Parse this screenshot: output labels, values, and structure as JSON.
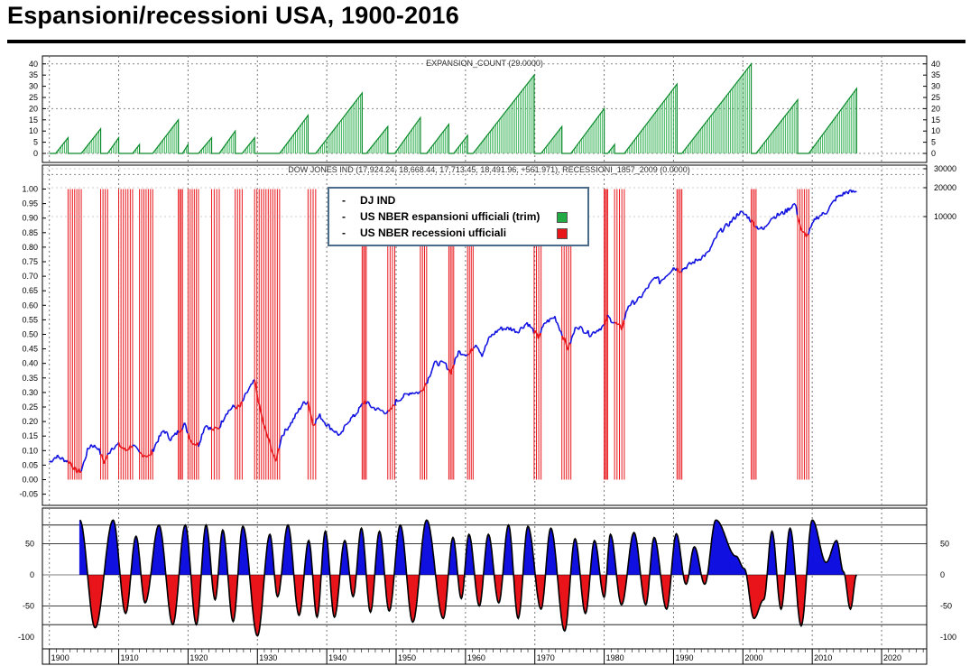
{
  "title": "Espansioni/recessioni USA, 1900-2016",
  "legend": {
    "items": [
      {
        "label": "DJ IND",
        "color": ""
      },
      {
        "label": "US NBER espansioni ufficiali (trim)",
        "color": "#22aa44"
      },
      {
        "label": "US NBER recessioni ufficiali",
        "color": "#e8151b"
      }
    ]
  },
  "chart_data": [
    {
      "type": "bar",
      "title": "EXPANSION_COUNT (29.0000)",
      "ylim": [
        -2,
        42
      ],
      "yticks": [
        "0",
        "5",
        "10",
        "15",
        "20",
        "25",
        "30",
        "35",
        "40"
      ],
      "series_color": "#22aa44",
      "expansions": [
        {
          "start": 1900.9,
          "end": 1902.7,
          "peak": 7
        },
        {
          "start": 1904.6,
          "end": 1907.4,
          "peak": 11
        },
        {
          "start": 1908.4,
          "end": 1910.0,
          "peak": 7
        },
        {
          "start": 1912.0,
          "end": 1913.0,
          "peak": 4
        },
        {
          "start": 1914.9,
          "end": 1918.6,
          "peak": 15
        },
        {
          "start": 1919.2,
          "end": 1920.0,
          "peak": 4
        },
        {
          "start": 1921.5,
          "end": 1923.4,
          "peak": 7
        },
        {
          "start": 1924.5,
          "end": 1926.8,
          "peak": 10
        },
        {
          "start": 1927.8,
          "end": 1929.6,
          "peak": 7
        },
        {
          "start": 1933.2,
          "end": 1937.3,
          "peak": 17
        },
        {
          "start": 1938.4,
          "end": 1945.1,
          "peak": 27
        },
        {
          "start": 1945.7,
          "end": 1948.8,
          "peak": 12
        },
        {
          "start": 1949.8,
          "end": 1953.5,
          "peak": 16
        },
        {
          "start": 1954.4,
          "end": 1957.6,
          "peak": 13
        },
        {
          "start": 1958.3,
          "end": 1960.3,
          "peak": 8
        },
        {
          "start": 1961.1,
          "end": 1969.9,
          "peak": 35
        },
        {
          "start": 1970.9,
          "end": 1973.9,
          "peak": 12
        },
        {
          "start": 1975.2,
          "end": 1980.0,
          "peak": 20
        },
        {
          "start": 1980.5,
          "end": 1981.5,
          "peak": 4
        },
        {
          "start": 1982.9,
          "end": 1990.5,
          "peak": 31
        },
        {
          "start": 1991.2,
          "end": 2001.2,
          "peak": 40
        },
        {
          "start": 2001.9,
          "end": 2007.9,
          "peak": 24
        },
        {
          "start": 2009.5,
          "end": 2016.4,
          "peak": 29
        }
      ]
    },
    {
      "type": "line",
      "title": "DOW JONES IND (17,924.24, 18,668.44, 17,713.45, 18,491.96, +561.971), RECESSIONI_1857_2009 (0.0000)",
      "ylim": [
        -0.09,
        1.04
      ],
      "yticks": [
        "-0.05",
        "0.00",
        "0.05",
        "0.10",
        "0.15",
        "0.20",
        "0.25",
        "0.30",
        "0.35",
        "0.40",
        "0.45",
        "0.50",
        "0.55",
        "0.60",
        "0.65",
        "0.70",
        "0.75",
        "0.80",
        "0.85",
        "0.90",
        "0.95",
        "1.00"
      ],
      "yticks_right": [
        "30000",
        "20000",
        "10000"
      ],
      "expansion_color": "#1010e0",
      "recession_color": "#e8151b",
      "recession_periods": [
        [
          1902.7,
          1904.6
        ],
        [
          1907.4,
          1908.4
        ],
        [
          1910.0,
          1912.0
        ],
        [
          1913.0,
          1914.9
        ],
        [
          1918.6,
          1919.2
        ],
        [
          1920.0,
          1921.5
        ],
        [
          1923.4,
          1924.5
        ],
        [
          1926.8,
          1927.8
        ],
        [
          1929.6,
          1933.2
        ],
        [
          1937.3,
          1938.4
        ],
        [
          1945.1,
          1945.7
        ],
        [
          1948.8,
          1949.8
        ],
        [
          1953.5,
          1954.4
        ],
        [
          1957.6,
          1958.3
        ],
        [
          1960.3,
          1961.1
        ],
        [
          1969.9,
          1970.9
        ],
        [
          1973.9,
          1975.2
        ],
        [
          1980.0,
          1980.5
        ],
        [
          1981.5,
          1982.9
        ],
        [
          1990.5,
          1991.2
        ],
        [
          2001.2,
          2001.9
        ],
        [
          2007.9,
          2009.5
        ]
      ],
      "dji_points": [
        [
          1900.0,
          0.06
        ],
        [
          1901.0,
          0.08
        ],
        [
          1902.0,
          0.07
        ],
        [
          1903.0,
          0.06
        ],
        [
          1903.8,
          0.03
        ],
        [
          1904.6,
          0.03
        ],
        [
          1905.5,
          0.1
        ],
        [
          1906.0,
          0.12
        ],
        [
          1907.0,
          0.11
        ],
        [
          1907.9,
          0.06
        ],
        [
          1909.0,
          0.11
        ],
        [
          1910.0,
          0.12
        ],
        [
          1911.0,
          0.1
        ],
        [
          1912.0,
          0.12
        ],
        [
          1913.0,
          0.09
        ],
        [
          1914.5,
          0.08
        ],
        [
          1915.5,
          0.13
        ],
        [
          1916.5,
          0.17
        ],
        [
          1917.5,
          0.14
        ],
        [
          1918.0,
          0.15
        ],
        [
          1919.5,
          0.19
        ],
        [
          1920.5,
          0.13
        ],
        [
          1921.5,
          0.12
        ],
        [
          1922.5,
          0.19
        ],
        [
          1923.5,
          0.17
        ],
        [
          1924.5,
          0.18
        ],
        [
          1925.5,
          0.23
        ],
        [
          1926.5,
          0.25
        ],
        [
          1927.5,
          0.25
        ],
        [
          1928.5,
          0.3
        ],
        [
          1929.6,
          0.34
        ],
        [
          1930.3,
          0.25
        ],
        [
          1931.0,
          0.18
        ],
        [
          1932.0,
          0.11
        ],
        [
          1932.6,
          0.06
        ],
        [
          1933.5,
          0.15
        ],
        [
          1935.0,
          0.2
        ],
        [
          1936.5,
          0.26
        ],
        [
          1937.3,
          0.27
        ],
        [
          1938.0,
          0.19
        ],
        [
          1939.0,
          0.22
        ],
        [
          1940.0,
          0.19
        ],
        [
          1941.0,
          0.17
        ],
        [
          1942.0,
          0.15
        ],
        [
          1943.0,
          0.2
        ],
        [
          1944.0,
          0.22
        ],
        [
          1945.5,
          0.27
        ],
        [
          1946.5,
          0.25
        ],
        [
          1947.5,
          0.24
        ],
        [
          1949.0,
          0.23
        ],
        [
          1950.0,
          0.27
        ],
        [
          1952.0,
          0.3
        ],
        [
          1953.5,
          0.3
        ],
        [
          1954.5,
          0.34
        ],
        [
          1955.5,
          0.4
        ],
        [
          1957.0,
          0.4
        ],
        [
          1957.9,
          0.37
        ],
        [
          1959.0,
          0.44
        ],
        [
          1960.5,
          0.43
        ],
        [
          1961.5,
          0.47
        ],
        [
          1962.4,
          0.43
        ],
        [
          1963.5,
          0.49
        ],
        [
          1965.0,
          0.52
        ],
        [
          1966.5,
          0.52
        ],
        [
          1967.5,
          0.51
        ],
        [
          1968.9,
          0.54
        ],
        [
          1970.5,
          0.49
        ],
        [
          1971.5,
          0.54
        ],
        [
          1972.9,
          0.56
        ],
        [
          1974.8,
          0.45
        ],
        [
          1976.0,
          0.53
        ],
        [
          1978.0,
          0.5
        ],
        [
          1980.0,
          0.53
        ],
        [
          1980.5,
          0.56
        ],
        [
          1982.5,
          0.52
        ],
        [
          1983.5,
          0.6
        ],
        [
          1985.0,
          0.62
        ],
        [
          1987.5,
          0.7
        ],
        [
          1988.0,
          0.68
        ],
        [
          1990.0,
          0.73
        ],
        [
          1991.0,
          0.72
        ],
        [
          1993.0,
          0.75
        ],
        [
          1995.0,
          0.78
        ],
        [
          1996.5,
          0.85
        ],
        [
          1998.0,
          0.88
        ],
        [
          1999.5,
          0.92
        ],
        [
          2000.5,
          0.91
        ],
        [
          2002.0,
          0.87
        ],
        [
          2003.0,
          0.86
        ],
        [
          2004.0,
          0.9
        ],
        [
          2006.0,
          0.92
        ],
        [
          2007.5,
          0.95
        ],
        [
          2008.5,
          0.85
        ],
        [
          2009.3,
          0.84
        ],
        [
          2010.5,
          0.9
        ],
        [
          2012.0,
          0.92
        ],
        [
          2013.5,
          0.97
        ],
        [
          2015.0,
          0.99
        ],
        [
          2016.4,
          0.99
        ]
      ]
    },
    {
      "type": "area",
      "title": "",
      "ylim": [
        -115,
        98
      ],
      "yticks_left": [
        "50",
        "0",
        "-50",
        "-100"
      ],
      "yticks_right": [
        "50",
        "0",
        "-50",
        "-100"
      ],
      "positive_color": "#1010e0",
      "negative_color": "#e8151b",
      "reference_lines": [
        80,
        50,
        -50,
        -80
      ],
      "peaks": [
        [
          1904.4,
          88
        ],
        [
          1906.6,
          -85
        ],
        [
          1909.2,
          88
        ],
        [
          1911.0,
          -62
        ],
        [
          1912.5,
          62
        ],
        [
          1913.8,
          -45
        ],
        [
          1915.8,
          80
        ],
        [
          1917.8,
          -80
        ],
        [
          1919.6,
          80
        ],
        [
          1921.2,
          -80
        ],
        [
          1922.6,
          80
        ],
        [
          1923.9,
          -40
        ],
        [
          1925.0,
          72
        ],
        [
          1926.5,
          -75
        ],
        [
          1927.9,
          78
        ],
        [
          1930.0,
          -98
        ],
        [
          1931.8,
          65
        ],
        [
          1932.9,
          -35
        ],
        [
          1934.4,
          80
        ],
        [
          1936.0,
          -65
        ],
        [
          1937.4,
          55
        ],
        [
          1938.6,
          -68
        ],
        [
          1939.8,
          70
        ],
        [
          1941.1,
          -68
        ],
        [
          1942.6,
          55
        ],
        [
          1943.8,
          -35
        ],
        [
          1945.0,
          75
        ],
        [
          1946.3,
          -60
        ],
        [
          1947.6,
          70
        ],
        [
          1949.0,
          -58
        ],
        [
          1950.6,
          80
        ],
        [
          1952.4,
          -76
        ],
        [
          1954.4,
          88
        ],
        [
          1956.8,
          -70
        ],
        [
          1958.2,
          60
        ],
        [
          1959.4,
          -38
        ],
        [
          1960.5,
          65
        ],
        [
          1962.0,
          -50
        ],
        [
          1963.3,
          65
        ],
        [
          1964.8,
          -45
        ],
        [
          1966.2,
          80
        ],
        [
          1967.6,
          -70
        ],
        [
          1969.0,
          78
        ],
        [
          1970.9,
          -55
        ],
        [
          1972.3,
          75
        ],
        [
          1974.3,
          -90
        ],
        [
          1975.8,
          58
        ],
        [
          1977.3,
          -62
        ],
        [
          1978.6,
          55
        ],
        [
          1980.0,
          -36
        ],
        [
          1980.9,
          65
        ],
        [
          1982.5,
          -48
        ],
        [
          1984.3,
          68
        ],
        [
          1986.0,
          -48
        ],
        [
          1987.2,
          60
        ],
        [
          1989.0,
          -55
        ],
        [
          1990.4,
          66
        ],
        [
          1991.8,
          -15
        ],
        [
          1993.0,
          45
        ],
        [
          1994.5,
          -15
        ],
        [
          1996.1,
          88
        ],
        [
          1999.0,
          30
        ],
        [
          2000.2,
          10
        ],
        [
          2001.6,
          -70
        ],
        [
          2003.0,
          -40
        ],
        [
          2004.2,
          70
        ],
        [
          2005.5,
          -55
        ],
        [
          2006.8,
          75
        ],
        [
          2008.4,
          -82
        ],
        [
          2010.0,
          88
        ],
        [
          2012.0,
          20
        ],
        [
          2013.5,
          55
        ],
        [
          2014.5,
          5
        ],
        [
          2015.5,
          -55
        ],
        [
          2016.4,
          0
        ]
      ]
    }
  ],
  "x_axis": {
    "range": [
      1899.0,
      2026.5
    ],
    "ticks": [
      "1900",
      "1910",
      "1920",
      "1930",
      "1940",
      "1950",
      "1960",
      "1970",
      "1980",
      "1990",
      "2000",
      "2010",
      "2020"
    ]
  }
}
